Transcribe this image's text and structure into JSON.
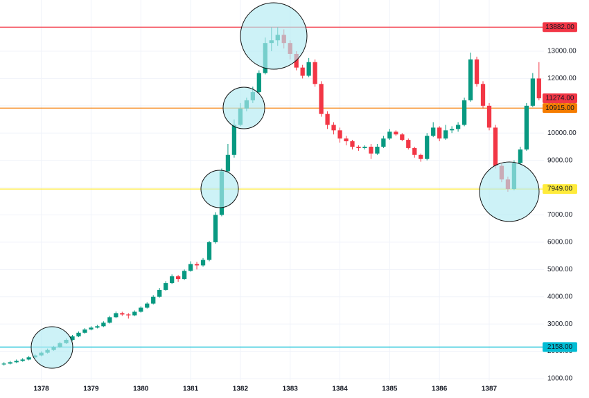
{
  "chart_data": {
    "type": "candlestick",
    "x": [
      1377.25,
      1377.375,
      1377.5,
      1377.625,
      1377.75,
      1377.875,
      1378,
      1378.125,
      1378.25,
      1378.375,
      1378.5,
      1378.625,
      1378.75,
      1378.875,
      1379,
      1379.125,
      1379.25,
      1379.375,
      1379.5,
      1379.625,
      1379.75,
      1379.875,
      1380,
      1380.125,
      1380.25,
      1380.375,
      1380.5,
      1380.625,
      1380.75,
      1380.875,
      1381,
      1381.125,
      1381.25,
      1381.375,
      1381.5,
      1381.625,
      1381.75,
      1381.875,
      1382,
      1382.125,
      1382.25,
      1382.375,
      1382.5,
      1382.625,
      1382.75,
      1382.875,
      1383,
      1383.125,
      1383.25,
      1383.375,
      1383.5,
      1383.625,
      1383.75,
      1383.875,
      1384,
      1384.125,
      1384.25,
      1384.375,
      1384.5,
      1384.625,
      1384.75,
      1384.875,
      1385,
      1385.125,
      1385.25,
      1385.375,
      1385.5,
      1385.625,
      1385.75,
      1385.875,
      1386,
      1386.125,
      1386.25,
      1386.375,
      1386.5,
      1386.625,
      1386.75,
      1386.875,
      1387,
      1387.125,
      1387.25,
      1387.375,
      1387.5,
      1387.625,
      1387.75,
      1387.875,
      1388
    ],
    "open": [
      1520,
      1550,
      1600,
      1650,
      1700,
      1780,
      1850,
      1950,
      2050,
      2150,
      2300,
      2420,
      2550,
      2680,
      2800,
      2870,
      2920,
      3050,
      3250,
      3400,
      3350,
      3320,
      3450,
      3600,
      3750,
      4000,
      4250,
      4500,
      4750,
      4650,
      4950,
      5200,
      5150,
      5350,
      6000,
      7000,
      8600,
      9200,
      10300,
      10900,
      11200,
      11500,
      12200,
      13300,
      13400,
      13600,
      13300,
      12900,
      12400,
      12100,
      12600,
      11800,
      10700,
      10300,
      10100,
      9800,
      9700,
      9500,
      9450,
      9500,
      9250,
      9500,
      9800,
      10050,
      9950,
      9750,
      9450,
      9200,
      9050,
      9900,
      10200,
      9800,
      10100,
      10150,
      10300,
      11200,
      12700,
      11800,
      11000,
      10200,
      8800,
      8300,
      7950,
      8900,
      9400,
      11000,
      12000
    ],
    "high": [
      1600,
      1650,
      1700,
      1750,
      1830,
      1900,
      2000,
      2100,
      2200,
      2350,
      2470,
      2600,
      2730,
      2850,
      2920,
      2970,
      3100,
      3300,
      3460,
      3450,
      3400,
      3500,
      3650,
      3800,
      4060,
      4320,
      4570,
      4820,
      4800,
      5000,
      5300,
      5280,
      5420,
      6050,
      7100,
      8700,
      9600,
      10500,
      11100,
      11300,
      11700,
      12300,
      13500,
      13882,
      13882,
      13800,
      13400,
      13000,
      12500,
      12750,
      12700,
      11900,
      10800,
      10400,
      10200,
      9900,
      9750,
      9550,
      9550,
      9600,
      9600,
      9900,
      10150,
      10100,
      10000,
      9800,
      9500,
      9250,
      10000,
      10400,
      10250,
      10300,
      10250,
      10400,
      11300,
      12950,
      12800,
      11900,
      11100,
      10300,
      8900,
      8400,
      9000,
      9500,
      11100,
      12200,
      12600
    ],
    "low": [
      1480,
      1520,
      1570,
      1620,
      1670,
      1750,
      1820,
      1920,
      2020,
      2120,
      2270,
      2390,
      2520,
      2650,
      2770,
      2840,
      2890,
      3020,
      3220,
      3300,
      3200,
      3290,
      3420,
      3570,
      3720,
      3970,
      4220,
      4470,
      4550,
      4620,
      4920,
      5000,
      5100,
      5300,
      5950,
      6950,
      8550,
      9100,
      10250,
      10800,
      11100,
      11450,
      12150,
      13000,
      13200,
      13100,
      12700,
      12300,
      12000,
      12050,
      11700,
      10600,
      10150,
      9950,
      9650,
      9550,
      9400,
      9350,
      9400,
      9050,
      9200,
      9450,
      9750,
      9900,
      9700,
      9400,
      9100,
      8950,
      9000,
      9850,
      9700,
      9750,
      10000,
      10050,
      10250,
      11150,
      11700,
      10900,
      10100,
      8700,
      8200,
      7850,
      7900,
      8850,
      9350,
      10950,
      11200
    ],
    "close": [
      1550,
      1600,
      1650,
      1700,
      1780,
      1850,
      1950,
      2050,
      2150,
      2300,
      2420,
      2550,
      2680,
      2800,
      2870,
      2920,
      3050,
      3250,
      3400,
      3350,
      3320,
      3450,
      3600,
      3750,
      4000,
      4250,
      4500,
      4750,
      4650,
      4950,
      5200,
      5150,
      5350,
      6000,
      7000,
      8600,
      9200,
      10300,
      10900,
      11200,
      11500,
      12200,
      13300,
      13400,
      13600,
      13300,
      12900,
      12400,
      12100,
      12600,
      11800,
      10700,
      10300,
      10100,
      9800,
      9700,
      9500,
      9450,
      9500,
      9250,
      9500,
      9800,
      10050,
      9950,
      9750,
      9450,
      9200,
      9050,
      9900,
      10200,
      9800,
      10100,
      10150,
      10300,
      11200,
      12700,
      11800,
      11000,
      10200,
      8800,
      8300,
      7950,
      8900,
      9400,
      11000,
      12000,
      11274
    ],
    "up_color": "#089981",
    "down_color": "#f23645",
    "xlim": [
      1377.17,
      1388.1
    ],
    "xticks": [
      1378,
      1379,
      1380,
      1381,
      1382,
      1383,
      1384,
      1385,
      1386,
      1387
    ],
    "ylim": [
      924,
      14877
    ],
    "yticks": [
      {
        "value": 1000,
        "label": "1000.00"
      },
      {
        "value": 2000,
        "label": "2000.00"
      },
      {
        "value": 3000,
        "label": "3000.00"
      },
      {
        "value": 4000,
        "label": "4000.00"
      },
      {
        "value": 5000,
        "label": "5000.00"
      },
      {
        "value": 6000,
        "label": "6000.00"
      },
      {
        "value": 7000,
        "label": "7000.00"
      },
      {
        "value": 8000,
        "label": "8000.00"
      },
      {
        "value": 9000,
        "label": "9000.00"
      },
      {
        "value": 10000,
        "label": "10000.00"
      },
      {
        "value": 11000,
        "label": "11000.00"
      },
      {
        "value": 12000,
        "label": "12000.00"
      },
      {
        "value": 13000,
        "label": "13000.00"
      }
    ],
    "grid": true,
    "levels": [
      {
        "value": 13882,
        "label": "13882.00",
        "color": "#f23645"
      },
      {
        "value": 10915,
        "label": "10915.00",
        "color": "#f57c00"
      },
      {
        "value": 7949,
        "label": "7949.00",
        "color": "#ffeb3b"
      },
      {
        "value": 2158,
        "label": "2158.00",
        "color": "#00bcd4"
      }
    ],
    "last_price": {
      "value": 11274,
      "label": "11274.00",
      "color": "#f23645"
    }
  }
}
